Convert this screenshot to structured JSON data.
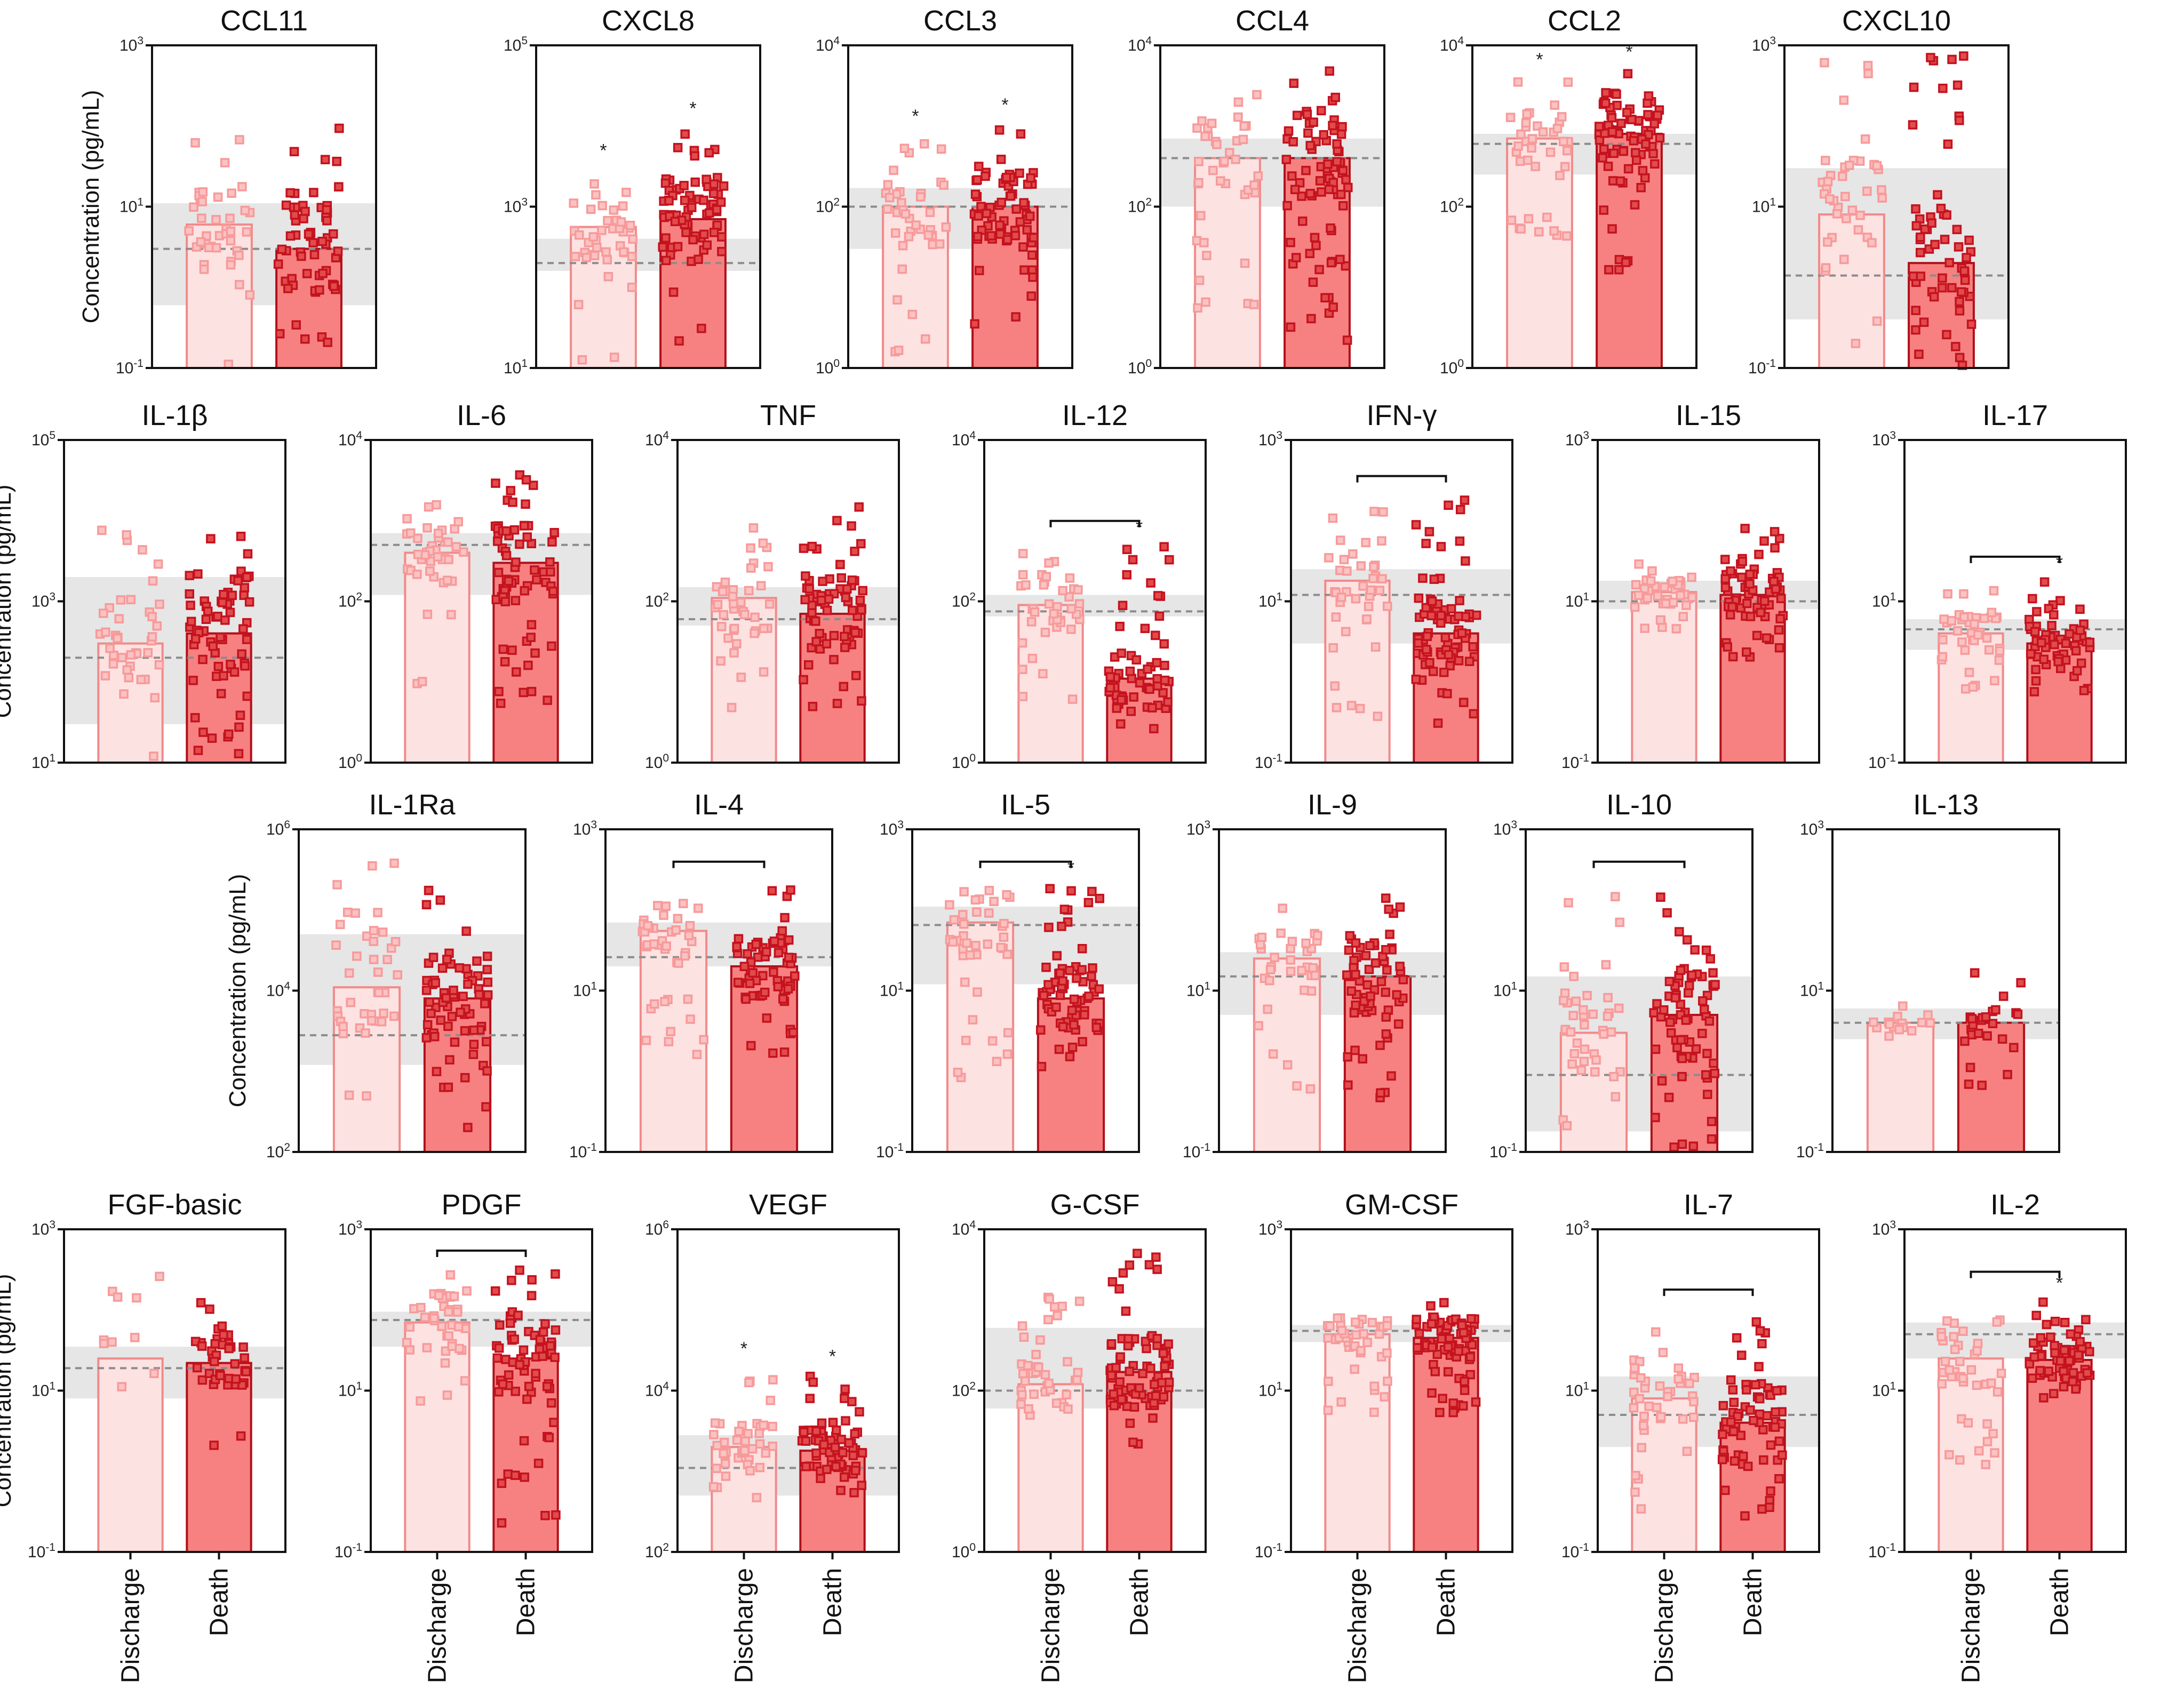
{
  "figure": {
    "ylabel": "Concentration (pg/mL)",
    "groups": [
      "Discharge",
      "Death"
    ],
    "colors": {
      "discharge_fill": "#fde2e2",
      "discharge_edge": "#f08a8a",
      "discharge_dot": "#f79a9a",
      "death_fill": "#f78181",
      "death_edge": "#b0101a",
      "death_dot": "#c4121f",
      "reference_band": "#e6e6e6",
      "reference_line": "#8c8c8c"
    }
  },
  "chart_data": [
    {
      "type": "bar",
      "title": "CCL11",
      "ylabel": "Concentration (pg/mL)",
      "scale": "log",
      "ylim": [
        0.1,
        1000
      ],
      "ytick_labels": [
        "10-1",
        "101",
        "103"
      ],
      "categories": [
        "Discharge",
        "Death"
      ],
      "values": [
        6,
        3
      ],
      "median": [
        6,
        3
      ],
      "band": [
        0.6,
        11
      ],
      "ref_line": 3,
      "sig": [
        false,
        false
      ],
      "bracket": false,
      "n": [
        40,
        60
      ],
      "range": [
        [
          0.1,
          160
        ]
      ],
      "range2": [
        [
          0.1,
          130
        ]
      ]
    },
    {
      "type": "bar",
      "title": "CXCL8",
      "ylabel": "",
      "scale": "log",
      "ylim": [
        10,
        100000
      ],
      "ytick_labels": [
        "101",
        "103",
        "105"
      ],
      "categories": [
        "Discharge",
        "Death"
      ],
      "values": [
        560,
        700
      ],
      "band": [
        160,
        400
      ],
      "ref_line": 200,
      "sig": [
        true,
        true
      ],
      "bracket": false,
      "n": [
        40,
        75
      ],
      "range": [
        [
          10,
          3000
        ]
      ],
      "range2": [
        [
          10,
          10000
        ]
      ]
    },
    {
      "type": "bar",
      "title": "CCL3",
      "ylabel": "",
      "scale": "log",
      "ylim": [
        1,
        10000
      ],
      "ytick_labels": [
        "100",
        "102",
        "104"
      ],
      "categories": [
        "Discharge",
        "Death"
      ],
      "values": [
        100,
        100
      ],
      "band": [
        30,
        170
      ],
      "ref_line": 100,
      "sig": [
        true,
        true
      ],
      "bracket": false,
      "n": [
        40,
        70
      ],
      "range": [
        [
          1,
          800
        ]
      ],
      "range2": [
        [
          3,
          1100
        ]
      ]
    },
    {
      "type": "bar",
      "title": "CCL4",
      "ylabel": "",
      "scale": "log",
      "ylim": [
        1,
        10000
      ],
      "ytick_labels": [
        "100",
        "102",
        "104"
      ],
      "categories": [
        "Discharge",
        "Death"
      ],
      "values": [
        400,
        400
      ],
      "band": [
        100,
        700
      ],
      "ref_line": 400,
      "sig": [
        false,
        false
      ],
      "bracket": false,
      "n": [
        40,
        80
      ],
      "range": [
        [
          5,
          3000
        ]
      ],
      "range2": [
        [
          2,
          5000
        ]
      ]
    },
    {
      "type": "bar",
      "title": "CCL2",
      "ylabel": "",
      "scale": "log",
      "ylim": [
        1,
        10000
      ],
      "ytick_labels": [
        "100",
        "102",
        "104"
      ],
      "categories": [
        "Discharge",
        "Death"
      ],
      "values": [
        700,
        800
      ],
      "band": [
        250,
        800
      ],
      "ref_line": 600,
      "sig": [
        true,
        true
      ],
      "bracket": false,
      "n": [
        40,
        80
      ],
      "range": [
        [
          40,
          4000
        ]
      ],
      "range2": [
        [
          10,
          5000
        ]
      ]
    },
    {
      "type": "bar",
      "title": "CXCL10",
      "ylabel": "",
      "scale": "log",
      "ylim": [
        0.1,
        1000
      ],
      "ytick_labels": [
        "10-1",
        "101",
        "103"
      ],
      "categories": [
        "Discharge",
        "Death"
      ],
      "values": [
        8,
        2
      ],
      "band": [
        0.4,
        30
      ],
      "ref_line": 1.4,
      "sig": [
        false,
        false
      ],
      "bracket": false,
      "n": [
        40,
        60
      ],
      "range": [
        [
          0.1,
          700
        ]
      ],
      "range2": [
        [
          0.1,
          1000
        ]
      ]
    },
    {
      "type": "bar",
      "title": "IL-1β",
      "ylabel": "Concentration (pg/mL)",
      "scale": "log",
      "ylim": [
        10,
        100000
      ],
      "ytick_labels": [
        "101",
        "103",
        "105"
      ],
      "categories": [
        "Discharge",
        "Death"
      ],
      "values": [
        300,
        400
      ],
      "band": [
        30,
        2000
      ],
      "ref_line": 200,
      "sig": [
        false,
        false
      ],
      "bracket": false,
      "n": [
        40,
        70
      ],
      "range": [
        [
          10,
          13000
        ]
      ],
      "range2": [
        [
          10,
          9000
        ]
      ]
    },
    {
      "type": "bar",
      "title": "IL-6",
      "ylabel": "",
      "scale": "log",
      "ylim": [
        1,
        10000
      ],
      "ytick_labels": [
        "100",
        "102",
        "104"
      ],
      "categories": [
        "Discharge",
        "Death"
      ],
      "values": [
        400,
        300
      ],
      "band": [
        120,
        700
      ],
      "ref_line": 500,
      "sig": [
        false,
        false
      ],
      "bracket": false,
      "n": [
        40,
        70
      ],
      "range": [
        [
          5,
          3500
        ]
      ],
      "range2": [
        [
          5,
          4500
        ]
      ]
    },
    {
      "type": "bar",
      "title": "TNF",
      "ylabel": "",
      "scale": "log",
      "ylim": [
        1,
        10000
      ],
      "ytick_labels": [
        "100",
        "102",
        "104"
      ],
      "categories": [
        "Discharge",
        "Death"
      ],
      "values": [
        110,
        70
      ],
      "band": [
        50,
        150
      ],
      "ref_line": 60,
      "sig": [
        false,
        false
      ],
      "bracket": false,
      "n": [
        40,
        70
      ],
      "range": [
        [
          3,
          1000
        ]
      ],
      "range2": [
        [
          3,
          1500
        ]
      ]
    },
    {
      "type": "bar",
      "title": "IL-12",
      "ylabel": "",
      "scale": "log",
      "ylim": [
        1,
        10000
      ],
      "ytick_labels": [
        "100",
        "102",
        "104"
      ],
      "categories": [
        "Discharge",
        "Death"
      ],
      "values": [
        90,
        11
      ],
      "band": [
        65,
        120
      ],
      "ref_line": 75,
      "sig": [
        false,
        true
      ],
      "bracket": true,
      "n": [
        40,
        60
      ],
      "range": [
        [
          3,
          500
        ]
      ],
      "range2": [
        [
          2,
          500
        ]
      ]
    },
    {
      "type": "bar",
      "title": "IFN-γ",
      "ylabel": "",
      "scale": "log",
      "ylim": [
        0.1,
        1000
      ],
      "ytick_labels": [
        "10-1",
        "101",
        "103"
      ],
      "categories": [
        "Discharge",
        "Death"
      ],
      "values": [
        18,
        4
      ],
      "band": [
        3,
        25
      ],
      "ref_line": 12,
      "sig": [
        false,
        false
      ],
      "bracket": true,
      "n": [
        40,
        75
      ],
      "range": [
        [
          0.3,
          180
        ]
      ],
      "range2": [
        [
          0.3,
          180
        ]
      ]
    },
    {
      "type": "bar",
      "title": "IL-15",
      "ylabel": "",
      "scale": "log",
      "ylim": [
        0.1,
        1000
      ],
      "ytick_labels": [
        "10-1",
        "101",
        "103"
      ],
      "categories": [
        "Discharge",
        "Death"
      ],
      "values": [
        13,
        12
      ],
      "band": [
        8,
        18
      ],
      "ref_line": 10,
      "sig": [
        false,
        false
      ],
      "bracket": false,
      "n": [
        40,
        70
      ],
      "range": [
        [
          3,
          30
        ]
      ],
      "range2": [
        [
          2,
          100
        ]
      ]
    },
    {
      "type": "bar",
      "title": "IL-17",
      "ylabel": "",
      "scale": "log",
      "ylim": [
        0.1,
        1000
      ],
      "ytick_labels": [
        "10-1",
        "101",
        "103"
      ],
      "categories": [
        "Discharge",
        "Death"
      ],
      "values": [
        4,
        3
      ],
      "band": [
        2.5,
        6
      ],
      "ref_line": 4.5,
      "sig": [
        false,
        true
      ],
      "bracket": true,
      "n": [
        40,
        60
      ],
      "range": [
        [
          0.8,
          14
        ]
      ],
      "range2": [
        [
          0.7,
          18
        ]
      ]
    },
    {
      "type": "bar",
      "title": "IL-1Ra",
      "ylabel": "Concentration (pg/mL)",
      "scale": "log",
      "ylim": [
        100,
        1000000
      ],
      "ytick_labels": [
        "102",
        "104",
        "106"
      ],
      "categories": [
        "Discharge",
        "Death"
      ],
      "values": [
        11000,
        8000
      ],
      "band": [
        1200,
        50000
      ],
      "ref_line": 2800,
      "sig": [
        false,
        false
      ],
      "bracket": false,
      "n": [
        40,
        70
      ],
      "range": [
        [
          130,
          900000
        ]
      ],
      "range2": [
        [
          200,
          200000
        ]
      ]
    },
    {
      "type": "bar",
      "title": "IL-4",
      "ylabel": "",
      "scale": "log",
      "ylim": [
        0.1,
        1000
      ],
      "ytick_labels": [
        "10-1",
        "101",
        "103"
      ],
      "categories": [
        "Discharge",
        "Death"
      ],
      "values": [
        55,
        20
      ],
      "band": [
        20,
        70
      ],
      "ref_line": 26,
      "sig": [
        false,
        false
      ],
      "bracket": true,
      "n": [
        40,
        70
      ],
      "range": [
        [
          1.5,
          130
        ]
      ],
      "range2": [
        [
          1.5,
          200
        ]
      ]
    },
    {
      "type": "bar",
      "title": "IL-5",
      "ylabel": "",
      "scale": "log",
      "ylim": [
        0.1,
        1000
      ],
      "ytick_labels": [
        "10-1",
        "101",
        "103"
      ],
      "categories": [
        "Discharge",
        "Death"
      ],
      "values": [
        70,
        8
      ],
      "band": [
        12,
        110
      ],
      "ref_line": 65,
      "sig": [
        false,
        true
      ],
      "bracket": true,
      "n": [
        40,
        70
      ],
      "range": [
        [
          0.8,
          200
        ]
      ],
      "range2": [
        [
          1,
          200
        ]
      ]
    },
    {
      "type": "bar",
      "title": "IL-9",
      "ylabel": "",
      "scale": "log",
      "ylim": [
        0.1,
        1000
      ],
      "ytick_labels": [
        "10-1",
        "101",
        "103"
      ],
      "categories": [
        "Discharge",
        "Death"
      ],
      "values": [
        25,
        15
      ],
      "band": [
        5,
        30
      ],
      "ref_line": 15,
      "sig": [
        false,
        false
      ],
      "bracket": false,
      "n": [
        35,
        70
      ],
      "range": [
        [
          0.4,
          110
        ]
      ],
      "range2": [
        [
          0.3,
          150
        ]
      ]
    },
    {
      "type": "bar",
      "title": "IL-10",
      "ylabel": "",
      "scale": "log",
      "ylim": [
        0.1,
        1000
      ],
      "ytick_labels": [
        "10-1",
        "101",
        "103"
      ],
      "categories": [
        "Discharge",
        "Death"
      ],
      "values": [
        3,
        5
      ],
      "band": [
        0.18,
        15
      ],
      "ref_line": 0.9,
      "sig": [
        false,
        false
      ],
      "bracket": true,
      "n": [
        40,
        70
      ],
      "range": [
        [
          0.15,
          200
        ]
      ],
      "range2": [
        [
          0.1,
          200
        ]
      ]
    },
    {
      "type": "bar",
      "title": "IL-13",
      "ylabel": "",
      "scale": "log",
      "ylim": [
        0.1,
        1000
      ],
      "ytick_labels": [
        "10-1",
        "101",
        "103"
      ],
      "categories": [
        "Discharge",
        "Death"
      ],
      "values": [
        4,
        4
      ],
      "band": [
        2.5,
        6
      ],
      "ref_line": 4,
      "sig": [
        false,
        false
      ],
      "bracket": false,
      "n": [
        15,
        25
      ],
      "range": [
        [
          2,
          8
        ]
      ],
      "range2": [
        [
          0.5,
          30
        ]
      ]
    },
    {
      "type": "bar",
      "title": "FGF-basic",
      "ylabel": "Concentration (pg/mL)",
      "scale": "log",
      "ylim": [
        0.1,
        1000
      ],
      "ytick_labels": [
        "10-1",
        "101",
        "103"
      ],
      "categories": [
        "Discharge",
        "Death"
      ],
      "values": [
        25,
        22
      ],
      "band": [
        8,
        35
      ],
      "ref_line": 19,
      "sig": [
        false,
        false
      ],
      "bracket": false,
      "n": [
        10,
        40
      ],
      "range": [
        [
          4,
          450
        ]
      ],
      "range2": [
        [
          2,
          300
        ]
      ]
    },
    {
      "type": "bar",
      "title": "PDGF",
      "ylabel": "",
      "scale": "log",
      "ylim": [
        0.1,
        1000
      ],
      "ytick_labels": [
        "10-1",
        "101",
        "103"
      ],
      "categories": [
        "Discharge",
        "Death"
      ],
      "values": [
        70,
        25
      ],
      "band": [
        35,
        95
      ],
      "ref_line": 75,
      "sig": [
        false,
        false
      ],
      "bracket": true,
      "n": [
        40,
        70
      ],
      "range": [
        [
          3,
          350
        ]
      ],
      "range2": [
        [
          0.2,
          350
        ]
      ]
    },
    {
      "type": "bar",
      "title": "VEGF",
      "ylabel": "",
      "scale": "log",
      "ylim": [
        100,
        1000000
      ],
      "ytick_labels": [
        "102",
        "104",
        "106"
      ],
      "categories": [
        "Discharge",
        "Death"
      ],
      "values": [
        2000,
        1800
      ],
      "band": [
        500,
        2800
      ],
      "ref_line": 1100,
      "sig": [
        true,
        true
      ],
      "bracket": false,
      "n": [
        40,
        75
      ],
      "range": [
        [
          400,
          20000
        ]
      ],
      "range2": [
        [
          500,
          16000
        ]
      ]
    },
    {
      "type": "bar",
      "title": "G-CSF",
      "ylabel": "",
      "scale": "log",
      "ylim": [
        1,
        10000
      ],
      "ytick_labels": [
        "100",
        "102",
        "104"
      ],
      "categories": [
        "Discharge",
        "Death"
      ],
      "values": [
        120,
        170
      ],
      "band": [
        60,
        600
      ],
      "ref_line": 100,
      "sig": [
        false,
        false
      ],
      "bracket": false,
      "n": [
        40,
        80
      ],
      "range": [
        [
          20,
          1500
        ]
      ],
      "range2": [
        [
          20,
          6000
        ]
      ]
    },
    {
      "type": "bar",
      "title": "GM-CSF",
      "ylabel": "",
      "scale": "log",
      "ylim": [
        0.1,
        1000
      ],
      "ytick_labels": [
        "10-1",
        "101",
        "103"
      ],
      "categories": [
        "Discharge",
        "Death"
      ],
      "values": [
        50,
        45
      ],
      "band": [
        40,
        65
      ],
      "ref_line": 55,
      "sig": [
        false,
        false
      ],
      "bracket": false,
      "n": [
        40,
        80
      ],
      "range": [
        [
          5,
          110
        ]
      ],
      "range2": [
        [
          5,
          150
        ]
      ]
    },
    {
      "type": "bar",
      "title": "IL-7",
      "ylabel": "",
      "scale": "log",
      "ylim": [
        0.1,
        1000
      ],
      "ytick_labels": [
        "10-1",
        "101",
        "103"
      ],
      "categories": [
        "Discharge",
        "Death"
      ],
      "values": [
        8,
        4
      ],
      "band": [
        2,
        15
      ],
      "ref_line": 5,
      "sig": [
        false,
        false
      ],
      "bracket": true,
      "n": [
        40,
        70
      ],
      "range": [
        [
          0.3,
          60
        ]
      ],
      "range2": [
        [
          0.15,
          90
        ]
      ]
    },
    {
      "type": "bar",
      "title": "IL-2",
      "ylabel": "",
      "scale": "log",
      "ylim": [
        0.1,
        1000
      ],
      "ytick_labels": [
        "10-1",
        "101",
        "103"
      ],
      "categories": [
        "Discharge",
        "Death"
      ],
      "values": [
        25,
        24
      ],
      "band": [
        25,
        70
      ],
      "ref_line": 50,
      "sig": [
        false,
        true
      ],
      "bracket": true,
      "n": [
        40,
        70
      ],
      "range": [
        [
          1,
          150
        ]
      ],
      "range2": [
        [
          5,
          130
        ]
      ]
    }
  ]
}
